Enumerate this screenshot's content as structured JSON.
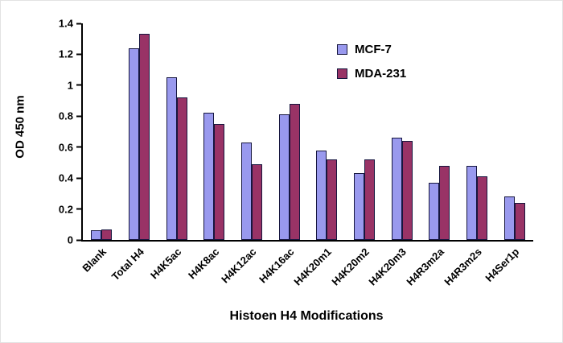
{
  "chart_data": {
    "type": "bar",
    "title": "",
    "xlabel": "Histoen H4 Modifications",
    "ylabel": "OD 450 nm",
    "ylim": [
      0,
      1.4
    ],
    "yticks": [
      "0",
      "0.2",
      "0.4",
      "0.6",
      "0.8",
      "1",
      "1.2",
      "1.4"
    ],
    "grid": false,
    "legend_position": "upper-right",
    "categories": [
      "Blank",
      "Total H4",
      "H4K5ac",
      "H4K8ac",
      "H4K12ac",
      "H4K16ac",
      "H4K20m1",
      "H4K20m2",
      "H4K20m3",
      "H4R3m2a",
      "H4R3m2s",
      "H4Ser1p"
    ],
    "series": [
      {
        "name": "MCF-7",
        "color": "#9999ee",
        "values": [
          0.06,
          1.24,
          1.05,
          0.82,
          0.63,
          0.81,
          0.58,
          0.43,
          0.66,
          0.37,
          0.48,
          0.28
        ]
      },
      {
        "name": "MDA-231",
        "color": "#993366",
        "values": [
          0.07,
          1.33,
          0.92,
          0.75,
          0.49,
          0.88,
          0.52,
          0.52,
          0.64,
          0.48,
          0.41,
          0.24
        ]
      }
    ]
  }
}
